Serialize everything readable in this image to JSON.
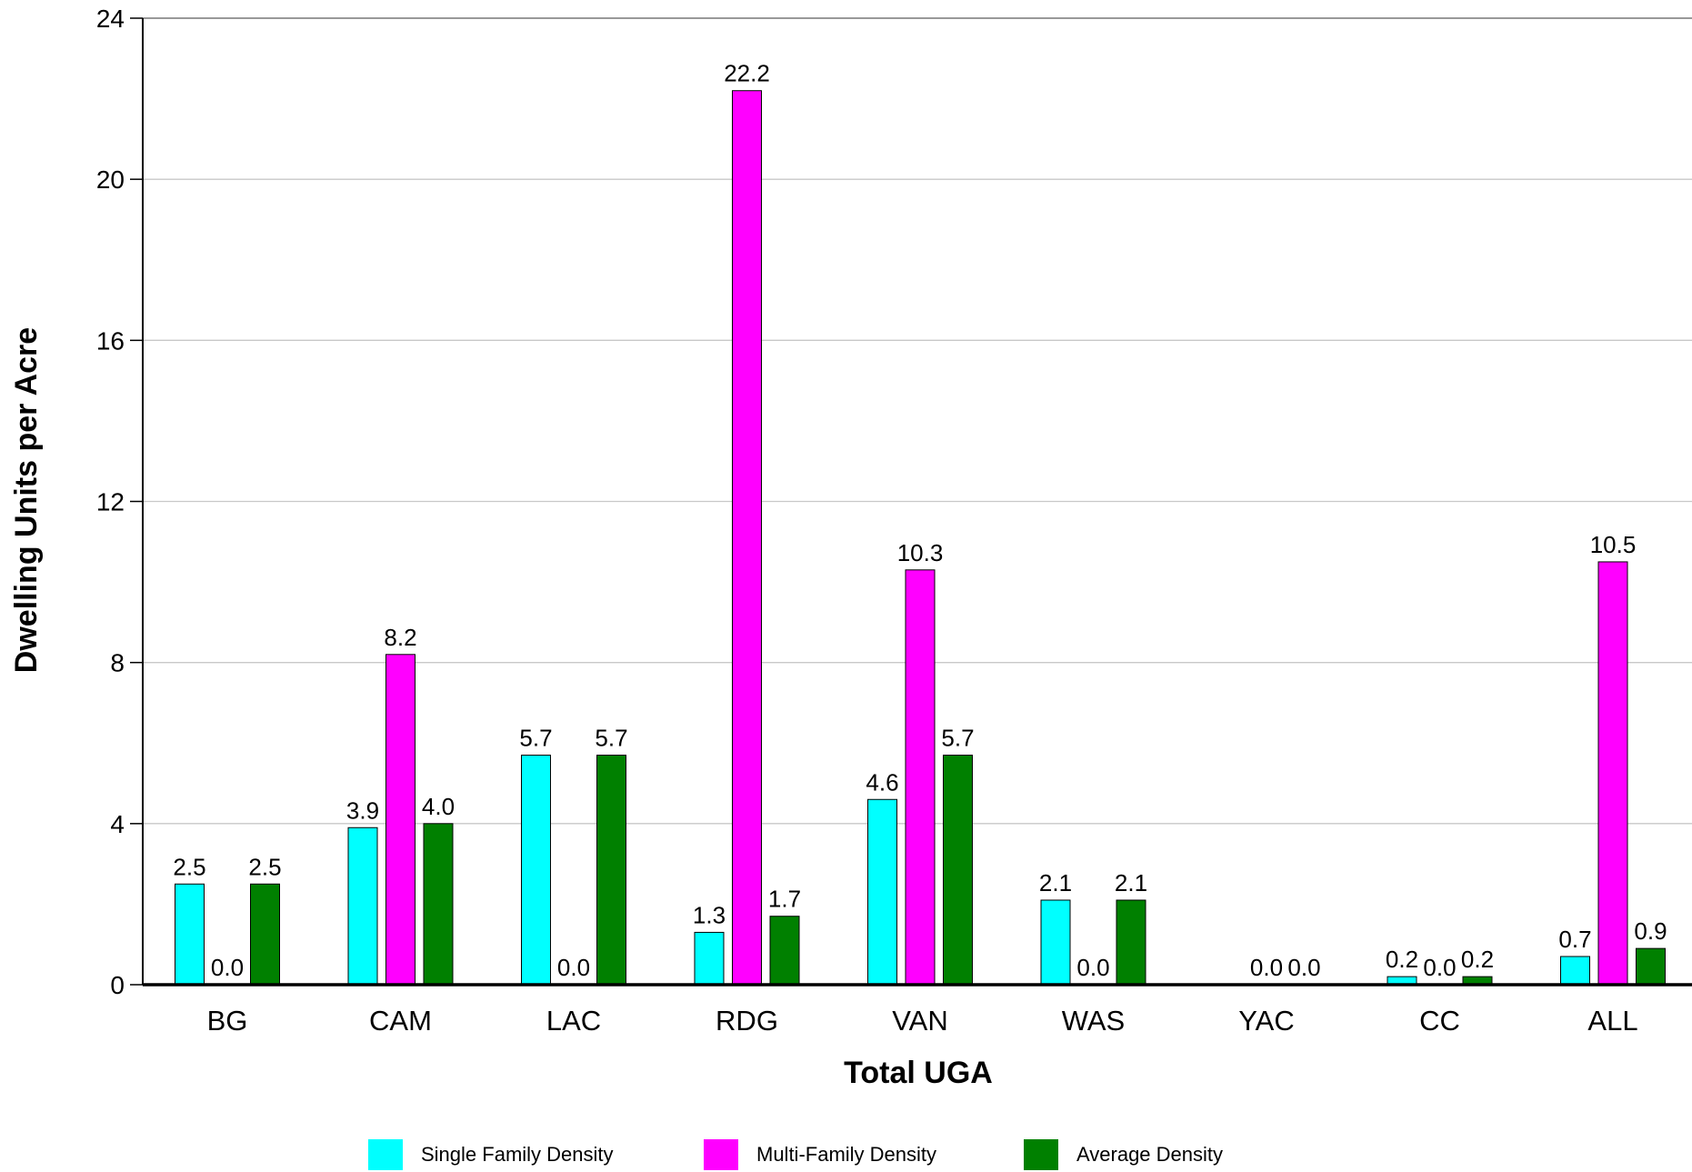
{
  "chart_data": {
    "type": "bar",
    "title": "",
    "xlabel": "Total UGA",
    "ylabel": "Dwelling Units per Acre",
    "ylim": [
      0,
      24
    ],
    "yticks": [
      0,
      4,
      8,
      12,
      16,
      20,
      24
    ],
    "grid": true,
    "legend_position": "bottom",
    "categories": [
      "BG",
      "CAM",
      "LAC",
      "RDG",
      "VAN",
      "WAS",
      "YAC",
      "CC",
      "ALL"
    ],
    "series": [
      {
        "name": "Single Family Density",
        "color": "#00FFFF",
        "values": [
          2.5,
          3.9,
          5.7,
          1.3,
          4.6,
          2.1,
          null,
          0.2,
          0.7
        ],
        "labels": [
          "2.5",
          "3.9",
          "5.7",
          "1.3",
          "4.6",
          "2.1",
          "",
          "0.2",
          "0.7"
        ]
      },
      {
        "name": "Multi-Family Density",
        "color": "#FF00FF",
        "values": [
          0.0,
          8.2,
          0.0,
          22.2,
          10.3,
          0.0,
          0.0,
          0.0,
          10.5
        ],
        "labels": [
          "0.0",
          "8.2",
          "0.0",
          "22.2",
          "10.3",
          "0.0",
          "0.0",
          "0.0",
          "10.5"
        ]
      },
      {
        "name": "Average Density",
        "color": "#008000",
        "values": [
          2.5,
          4.0,
          5.7,
          1.7,
          5.7,
          2.1,
          0.0,
          0.2,
          0.9
        ],
        "labels": [
          "2.5",
          "4.0",
          "5.7",
          "1.7",
          "5.7",
          "2.1",
          "0.0",
          "0.2",
          "0.9"
        ]
      }
    ]
  }
}
